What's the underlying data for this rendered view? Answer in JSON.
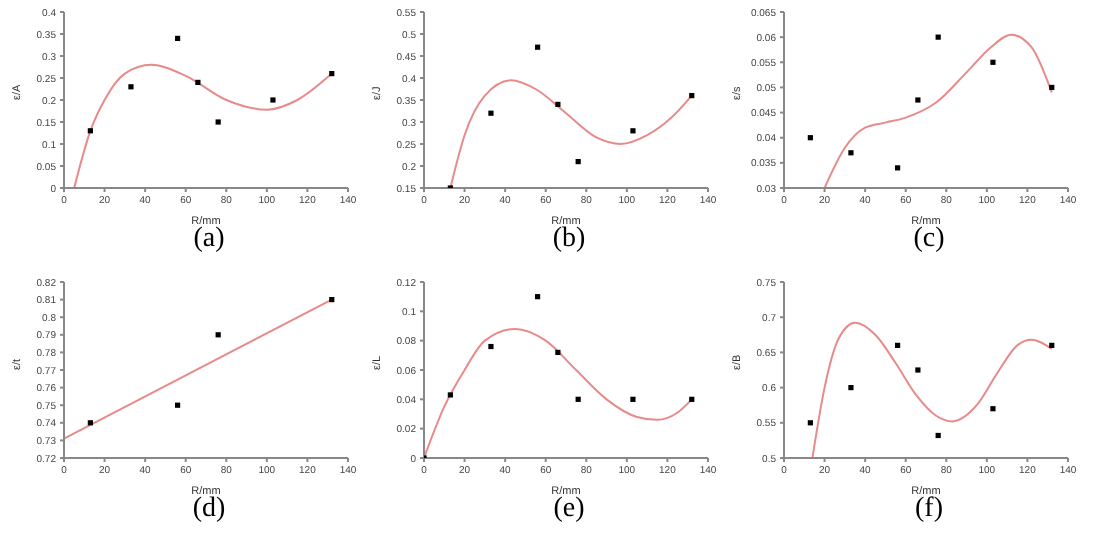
{
  "chart_data": [
    {
      "type": "scatter",
      "ylabel": "ε/A",
      "xlabel": "R/mm",
      "annotations": [
        "(a)"
      ],
      "xlim": [
        0,
        140
      ],
      "xticks": [
        0,
        20,
        40,
        60,
        80,
        100,
        120,
        140
      ],
      "ylim": [
        0,
        0.4
      ],
      "yticks": [
        0,
        0.05,
        0.1,
        0.15,
        0.2,
        0.25,
        0.3,
        0.35,
        0.4
      ],
      "series": [
        {
          "marker": "square",
          "color": "#000000",
          "x": [
            13,
            33,
            56,
            66,
            76,
            103,
            132
          ],
          "values": [
            0.13,
            0.23,
            0.34,
            0.24,
            0.15,
            0.2,
            0.26
          ]
        },
        {
          "type": "line",
          "marker": "none",
          "color": "#e88a8a",
          "x": [
            5,
            13,
            20,
            30,
            43,
            60,
            80,
            100,
            115,
            132
          ],
          "values": [
            0,
            0.13,
            0.2,
            0.26,
            0.28,
            0.255,
            0.2,
            0.178,
            0.2,
            0.26
          ]
        }
      ]
    },
    {
      "type": "scatter",
      "ylabel": "ε/J",
      "xlabel": "R/mm",
      "annotations": [
        "(b)"
      ],
      "xlim": [
        0,
        140
      ],
      "xticks": [
        0,
        20,
        40,
        60,
        80,
        100,
        120,
        140
      ],
      "ylim": [
        0.15,
        0.55
      ],
      "yticks": [
        0.15,
        0.2,
        0.25,
        0.3,
        0.35,
        0.4,
        0.45,
        0.5,
        0.55
      ],
      "series": [
        {
          "marker": "square",
          "color": "#000000",
          "x": [
            13,
            33,
            56,
            66,
            76,
            103,
            132
          ],
          "values": [
            0.15,
            0.32,
            0.47,
            0.34,
            0.21,
            0.28,
            0.36
          ]
        },
        {
          "type": "line",
          "marker": "none",
          "color": "#e88a8a",
          "x": [
            13,
            20,
            30,
            43,
            55,
            70,
            85,
            97,
            110,
            122,
            132
          ],
          "values": [
            0.15,
            0.27,
            0.36,
            0.395,
            0.375,
            0.32,
            0.265,
            0.25,
            0.27,
            0.31,
            0.36
          ]
        }
      ]
    },
    {
      "type": "scatter",
      "ylabel": "ε/s",
      "xlabel": "R/mm",
      "annotations": [
        "(c)"
      ],
      "xlim": [
        0,
        140
      ],
      "xticks": [
        0,
        20,
        40,
        60,
        80,
        100,
        120,
        140
      ],
      "ylim": [
        0.03,
        0.065
      ],
      "yticks": [
        0.03,
        0.035,
        0.04,
        0.045,
        0.05,
        0.055,
        0.06,
        0.065
      ],
      "series": [
        {
          "marker": "square",
          "color": "#000000",
          "x": [
            13,
            33,
            56,
            66,
            76,
            103,
            132
          ],
          "values": [
            0.04,
            0.037,
            0.034,
            0.0475,
            0.06,
            0.055,
            0.05
          ]
        },
        {
          "type": "line",
          "marker": "none",
          "color": "#e88a8a",
          "x": [
            20,
            30,
            40,
            50,
            60,
            75,
            90,
            102,
            112,
            122,
            132
          ],
          "values": [
            0.03,
            0.038,
            0.042,
            0.043,
            0.044,
            0.047,
            0.053,
            0.058,
            0.0605,
            0.058,
            0.049
          ]
        }
      ]
    },
    {
      "type": "scatter",
      "ylabel": "ε/t",
      "xlabel": "R/mm",
      "annotations": [
        "(d)"
      ],
      "xlim": [
        0,
        140
      ],
      "xticks": [
        0,
        20,
        40,
        60,
        80,
        100,
        120,
        140
      ],
      "ylim": [
        0.72,
        0.82
      ],
      "yticks": [
        0.72,
        0.73,
        0.74,
        0.75,
        0.76,
        0.77,
        0.78,
        0.79,
        0.8,
        0.81,
        0.82
      ],
      "series": [
        {
          "marker": "square",
          "color": "#000000",
          "x": [
            13,
            56,
            76,
            132
          ],
          "values": [
            0.74,
            0.75,
            0.79,
            0.81
          ]
        },
        {
          "type": "line",
          "marker": "none",
          "color": "#e88a8a",
          "x": [
            0,
            132
          ],
          "values": [
            0.731,
            0.81
          ]
        }
      ]
    },
    {
      "type": "scatter",
      "ylabel": "ε/L",
      "xlabel": "R/mm",
      "annotations": [
        "(e)"
      ],
      "xlim": [
        0,
        140
      ],
      "xticks": [
        0,
        20,
        40,
        60,
        80,
        100,
        120,
        140
      ],
      "ylim": [
        0,
        0.12
      ],
      "yticks": [
        0,
        0.02,
        0.04,
        0.06,
        0.08,
        0.1,
        0.12
      ],
      "series": [
        {
          "marker": "square",
          "color": "#000000",
          "x": [
            0,
            13,
            33,
            56,
            66,
            76,
            103,
            132
          ],
          "values": [
            0,
            0.043,
            0.076,
            0.11,
            0.072,
            0.04,
            0.04,
            0.04
          ]
        },
        {
          "type": "line",
          "marker": "none",
          "color": "#e88a8a",
          "x": [
            0,
            10,
            20,
            30,
            45,
            60,
            75,
            90,
            105,
            115,
            125,
            132
          ],
          "values": [
            0,
            0.035,
            0.06,
            0.08,
            0.088,
            0.08,
            0.06,
            0.04,
            0.028,
            0.026,
            0.031,
            0.04
          ]
        }
      ]
    },
    {
      "type": "scatter",
      "ylabel": "ε/B",
      "xlabel": "R/mm",
      "annotations": [
        "(f)"
      ],
      "xlim": [
        0,
        140
      ],
      "xticks": [
        0,
        20,
        40,
        60,
        80,
        100,
        120,
        140
      ],
      "ylim": [
        0.5,
        0.75
      ],
      "yticks": [
        0.5,
        0.55,
        0.6,
        0.65,
        0.7,
        0.75
      ],
      "series": [
        {
          "marker": "square",
          "color": "#000000",
          "x": [
            13,
            33,
            56,
            66,
            76,
            103,
            132
          ],
          "values": [
            0.55,
            0.6,
            0.66,
            0.625,
            0.532,
            0.57,
            0.66
          ]
        },
        {
          "type": "line",
          "marker": "none",
          "color": "#e88a8a",
          "x": [
            14,
            20,
            27,
            35,
            45,
            55,
            65,
            75,
            83,
            95,
            105,
            115,
            122,
            132
          ],
          "values": [
            0.5,
            0.6,
            0.67,
            0.692,
            0.675,
            0.635,
            0.59,
            0.56,
            0.552,
            0.575,
            0.62,
            0.66,
            0.668,
            0.655
          ]
        }
      ]
    }
  ]
}
